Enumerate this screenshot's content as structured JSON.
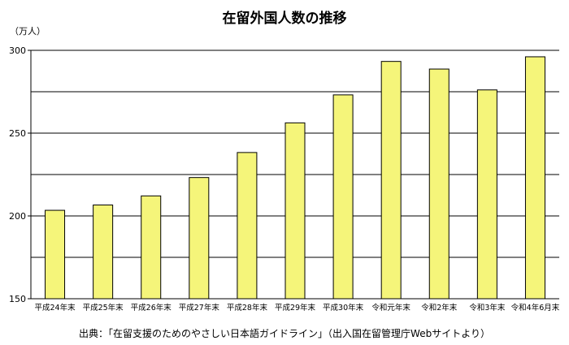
{
  "chart_data": {
    "type": "bar",
    "title": "在留外国人数の推移",
    "unit_label": "（万人）",
    "xlabel": "",
    "ylabel": "",
    "categories": [
      "平成24年末",
      "平成25年末",
      "平成26年末",
      "平成27年末",
      "平成28年末",
      "平成29年末",
      "平成30年末",
      "令和元年末",
      "令和2年末",
      "令和3年末",
      "令和4年6月末"
    ],
    "values": [
      203.4,
      206.6,
      212.1,
      223.2,
      238.3,
      256.2,
      273.1,
      293.3,
      288.7,
      276.1,
      296.1
    ],
    "ylim": [
      150,
      300
    ],
    "yticks": [
      150,
      200,
      250,
      300
    ],
    "grid": true,
    "legend": "none",
    "colors": {
      "bar_fill": "#f5f57a",
      "bar_stroke": "#000000",
      "grid": "#000000"
    }
  },
  "source_note": "出典：「在留支援のためのやさしい日本語ガイドライン」（出入国在留管理庁Webサイトより）"
}
